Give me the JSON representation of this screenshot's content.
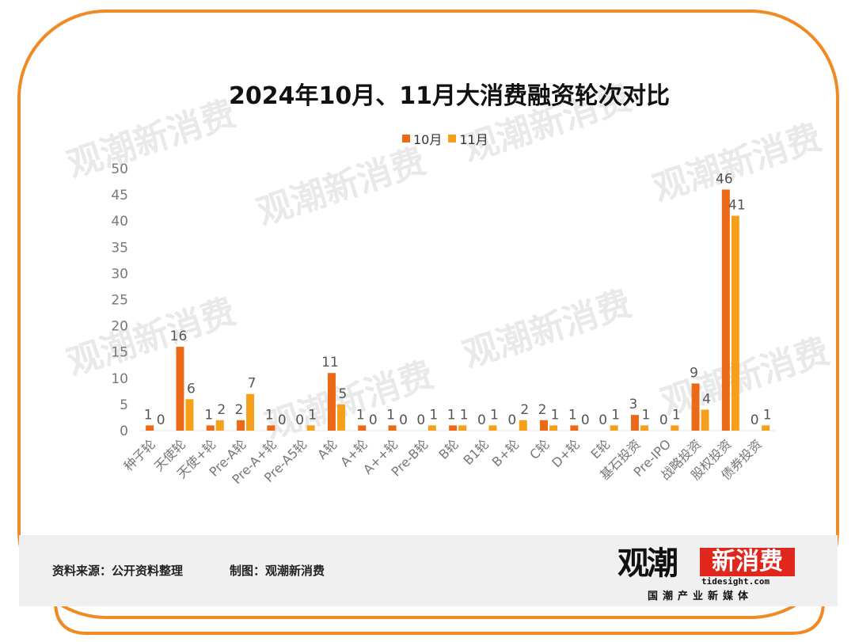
{
  "title": "2024年10月、11月大消费融资轮次对比",
  "legend": [
    {
      "label": "10月",
      "color": "#ec6a17"
    },
    {
      "label": "11月",
      "color": "#f59f1a"
    }
  ],
  "footer": {
    "source": "资料来源：公开资料整理",
    "maker": "制图：观潮新消费"
  },
  "logo": {
    "main_left": "观潮",
    "main_right": "新消费",
    "url": "tidesight.com",
    "tagline": "国潮产业新媒体"
  },
  "watermark": "观潮新消费",
  "colors": {
    "frame": "#f08a24",
    "series1": "#ec6a17",
    "series2": "#f59f1a"
  },
  "chart_data": {
    "type": "bar",
    "categories": [
      "种子轮",
      "天使轮",
      "天使+轮",
      "Pre-A轮",
      "Pre-A+轮",
      "Pre-A5轮",
      "A轮",
      "A+轮",
      "A++轮",
      "Pre-B轮",
      "B轮",
      "B1轮",
      "B+轮",
      "C轮",
      "D+轮",
      "E轮",
      "基石投资",
      "Pre-IPO",
      "战略投资",
      "股权投资",
      "债券投资"
    ],
    "series": [
      {
        "name": "10月",
        "values": [
          1,
          16,
          1,
          2,
          1,
          0,
          11,
          1,
          1,
          0,
          1,
          0,
          0,
          2,
          1,
          0,
          3,
          0,
          9,
          46,
          0
        ]
      },
      {
        "name": "11月",
        "values": [
          0,
          6,
          2,
          7,
          0,
          1,
          5,
          0,
          0,
          1,
          1,
          1,
          2,
          1,
          0,
          1,
          1,
          1,
          4,
          41,
          1
        ]
      }
    ],
    "y_ticks": [
      0,
      5,
      10,
      15,
      20,
      25,
      30,
      35,
      40,
      45,
      50
    ],
    "ylim": [
      0,
      50
    ],
    "grid": false,
    "legend_position": "top"
  }
}
